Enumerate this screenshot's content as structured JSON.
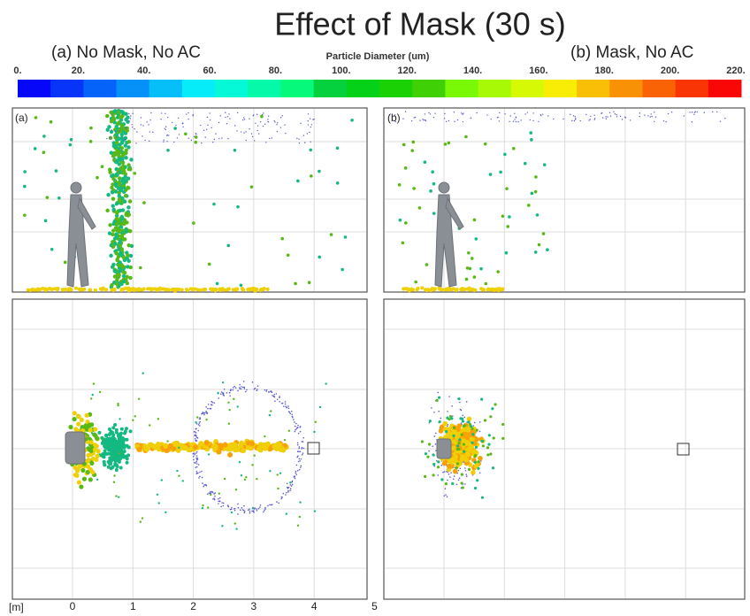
{
  "figure": {
    "title": "Effect of Mask (30 s)",
    "panel_a_title": "(a) No Mask, No AC",
    "panel_b_title": "(b) Mask, No AC",
    "colorbar_title": "Particle Diameter (um)",
    "colorbar_labels": [
      "0.",
      "20.",
      "40.",
      "60.",
      "80.",
      "100.",
      "120.",
      "140.",
      "160.",
      "180.",
      "200.",
      "220."
    ],
    "panel_a_label": "(a)",
    "panel_b_label": "(b)",
    "axis_unit": "[m]",
    "axis_labels": [
      "0",
      "1",
      "2",
      "3",
      "4",
      "5"
    ]
  }
}
